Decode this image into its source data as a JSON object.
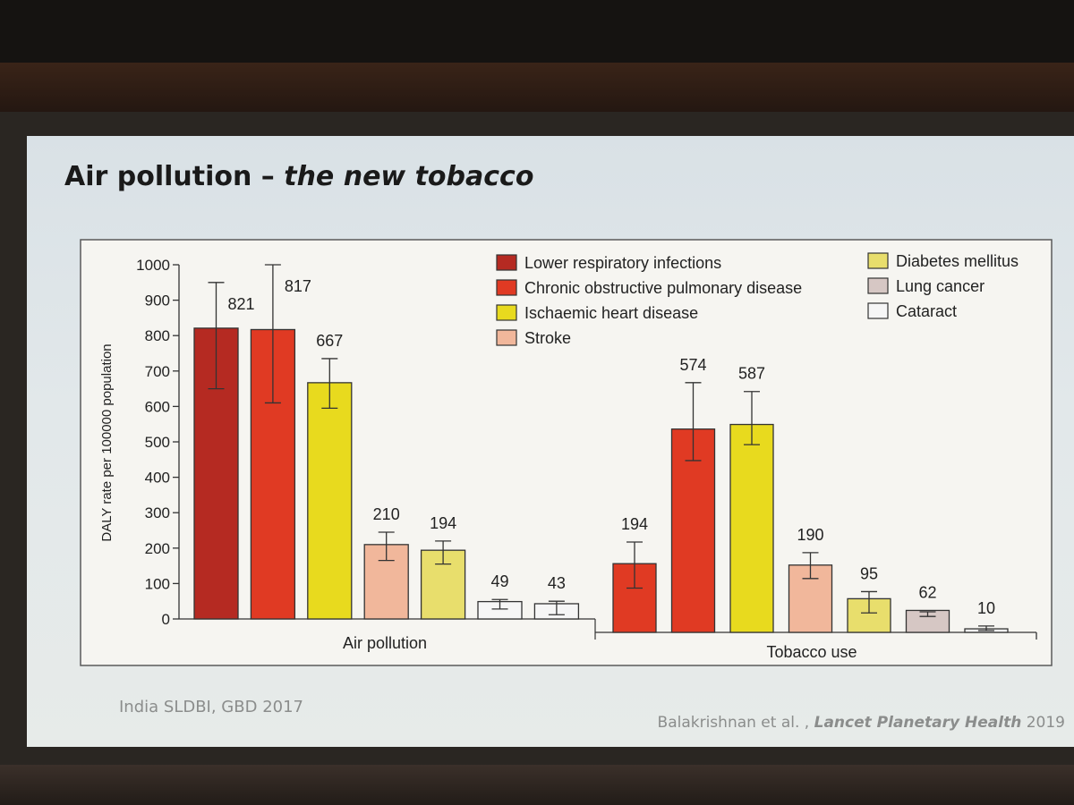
{
  "slide": {
    "title_main": "Air pollution – ",
    "title_italic": "the new tobacco",
    "footer_left": "India SLDBI, GBD 2017",
    "footer_right_prefix": "Balakrishnan et al. , ",
    "footer_right_journal": "Lancet Planetary Health",
    "footer_right_year": " 2019"
  },
  "chart_data": {
    "type": "bar",
    "title": "",
    "ylabel": "DALY rate per 100000 population",
    "ylim": [
      0,
      1000
    ],
    "yticks": [
      "0",
      "100",
      "200",
      "300",
      "400",
      "500",
      "600",
      "700",
      "800",
      "900",
      "1000"
    ],
    "legend_placement": "top",
    "series": [
      {
        "name": "Lower respiratory infections",
        "color": "#b52a22"
      },
      {
        "name": "Chronic obstructive pulmonary disease",
        "color": "#e03a23"
      },
      {
        "name": "Ischaemic heart disease",
        "color": "#e8da1e"
      },
      {
        "name": "Stroke",
        "color": "#f1b79b"
      },
      {
        "name": "Diabetes mellitus",
        "color": "#e8de6c"
      },
      {
        "name": "Lung cancer",
        "color": "#d6c7c4"
      },
      {
        "name": "Cataract",
        "color": "#f6f6f6"
      }
    ],
    "groups": [
      {
        "name": "Air pollution",
        "bars": [
          {
            "series": "Lower respiratory infections",
            "value": 821,
            "label": "821",
            "err_low": 650,
            "err_high": 950
          },
          {
            "series": "Chronic obstructive pulmonary disease",
            "value": 817,
            "label": "817",
            "err_low": 610,
            "err_high": 1000
          },
          {
            "series": "Ischaemic heart disease",
            "value": 667,
            "label": "667",
            "err_low": 595,
            "err_high": 735
          },
          {
            "series": "Stroke",
            "value": 210,
            "label": "210",
            "err_low": 165,
            "err_high": 245
          },
          {
            "series": "Diabetes mellitus",
            "value": 194,
            "label": "194",
            "err_low": 155,
            "err_high": 220
          },
          {
            "series": "Cataract",
            "value": 49,
            "label": "49",
            "err_low": 28,
            "err_high": 55
          },
          {
            "series": "Cataract",
            "value": 43,
            "label": "43",
            "err_low": 12,
            "err_high": 50
          }
        ]
      },
      {
        "name": "Tobacco use",
        "bars": [
          {
            "series": "Chronic obstructive pulmonary disease",
            "value": 194,
            "label": "194",
            "err_low": 125,
            "err_high": 255
          },
          {
            "series": "Chronic obstructive pulmonary disease",
            "value": 574,
            "label": "574",
            "err_low": 485,
            "err_high": 705
          },
          {
            "series": "Ischaemic heart disease",
            "value": 587,
            "label": "587",
            "err_low": 530,
            "err_high": 680
          },
          {
            "series": "Stroke",
            "value": 190,
            "label": "190",
            "err_low": 152,
            "err_high": 225
          },
          {
            "series": "Diabetes mellitus",
            "value": 95,
            "label": "95",
            "err_low": 55,
            "err_high": 115
          },
          {
            "series": "Lung cancer",
            "value": 62,
            "label": "62",
            "err_low": 45,
            "err_high": 58
          },
          {
            "series": "Cataract",
            "value": 10,
            "label": "10",
            "err_low": 5,
            "err_high": 18
          }
        ]
      }
    ]
  }
}
